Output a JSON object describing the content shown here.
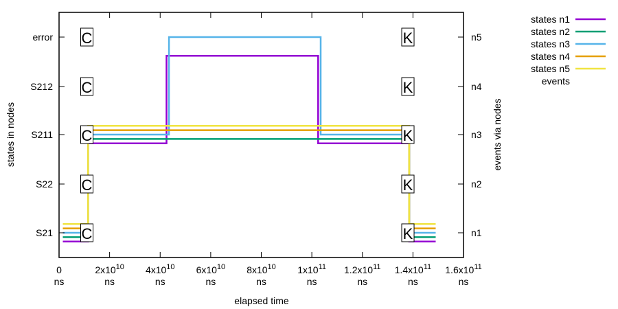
{
  "chart_data": {
    "type": "line",
    "xlabel": "elapsed time",
    "ylabel_left": "states in nodes",
    "ylabel_right": "events via nodes",
    "xlim": [
      0,
      160000000000
    ],
    "x_ticks": [
      {
        "value": 0,
        "mant": "0",
        "exp": "",
        "unit": "ns"
      },
      {
        "value": 20000000000,
        "mant": "2x10",
        "exp": "10",
        "unit": "ns"
      },
      {
        "value": 40000000000,
        "mant": "4x10",
        "exp": "10",
        "unit": "ns"
      },
      {
        "value": 60000000000,
        "mant": "6x10",
        "exp": "10",
        "unit": "ns"
      },
      {
        "value": 80000000000,
        "mant": "8x10",
        "exp": "10",
        "unit": "ns"
      },
      {
        "value": 100000000000,
        "mant": "1x10",
        "exp": "11",
        "unit": "ns"
      },
      {
        "value": 120000000000,
        "mant": "1.2x10",
        "exp": "11",
        "unit": "ns"
      },
      {
        "value": 140000000000,
        "mant": "1.4x10",
        "exp": "11",
        "unit": "ns"
      },
      {
        "value": 160000000000,
        "mant": "1.6x10",
        "exp": "11",
        "unit": "ns"
      }
    ],
    "y_left_ticks": [
      "S21",
      "S22",
      "S211",
      "S212",
      "error"
    ],
    "y_right_ticks": [
      "n1",
      "n2",
      "n3",
      "n4",
      "n5"
    ],
    "series": [
      {
        "name": "states n1",
        "color": "#9400d3",
        "offset": -0.2,
        "points": [
          [
            1500000000,
            0
          ],
          [
            11500000000,
            0
          ],
          [
            11500000000,
            2
          ],
          [
            42500000000,
            2
          ],
          [
            42500000000,
            3.8
          ],
          [
            102500000000,
            3.8
          ],
          [
            102500000000,
            2
          ],
          [
            138500000000,
            2
          ],
          [
            138500000000,
            0
          ],
          [
            149000000000,
            0
          ]
        ]
      },
      {
        "name": "states n2",
        "color": "#009e73",
        "offset": -0.1,
        "points": [
          [
            1500000000,
            0
          ],
          [
            11500000000,
            0
          ],
          [
            11500000000,
            2
          ],
          [
            138500000000,
            2
          ],
          [
            138500000000,
            0
          ],
          [
            149000000000,
            0
          ]
        ]
      },
      {
        "name": "states n3",
        "color": "#56b4e9",
        "offset": 0.0,
        "points": [
          [
            1500000000,
            0
          ],
          [
            11500000000,
            0
          ],
          [
            11500000000,
            2
          ],
          [
            43500000000,
            2
          ],
          [
            43500000000,
            4
          ],
          [
            103500000000,
            4
          ],
          [
            103500000000,
            2
          ],
          [
            138500000000,
            2
          ],
          [
            138500000000,
            0
          ],
          [
            149000000000,
            0
          ]
        ]
      },
      {
        "name": "states n4",
        "color": "#e69f00",
        "offset": 0.1,
        "points": [
          [
            1500000000,
            0
          ],
          [
            11500000000,
            0
          ],
          [
            11500000000,
            2
          ],
          [
            138500000000,
            2
          ],
          [
            138500000000,
            0
          ],
          [
            149000000000,
            0
          ]
        ]
      },
      {
        "name": "states n5",
        "color": "#f0e442",
        "offset": 0.2,
        "points": [
          [
            1500000000,
            0
          ],
          [
            11500000000,
            0
          ],
          [
            11500000000,
            2
          ],
          [
            138500000000,
            2
          ],
          [
            138500000000,
            0
          ],
          [
            149000000000,
            0
          ]
        ]
      }
    ],
    "events": [
      {
        "label": "C",
        "x": 11000000000,
        "y": 0
      },
      {
        "label": "C",
        "x": 11000000000,
        "y": 1
      },
      {
        "label": "C",
        "x": 11000000000,
        "y": 2
      },
      {
        "label": "C",
        "x": 11000000000,
        "y": 3
      },
      {
        "label": "C",
        "x": 11000000000,
        "y": 4
      },
      {
        "label": "K",
        "x": 138000000000,
        "y": 0
      },
      {
        "label": "K",
        "x": 138000000000,
        "y": 1
      },
      {
        "label": "K",
        "x": 138000000000,
        "y": 2
      },
      {
        "label": "K",
        "x": 138000000000,
        "y": 3
      },
      {
        "label": "K",
        "x": 138000000000,
        "y": 4
      }
    ],
    "legend": {
      "placement": "top-right, outside",
      "entries": [
        "states n1",
        "states n2",
        "states n3",
        "states n4",
        "states n5",
        "events"
      ]
    },
    "grid": false
  }
}
